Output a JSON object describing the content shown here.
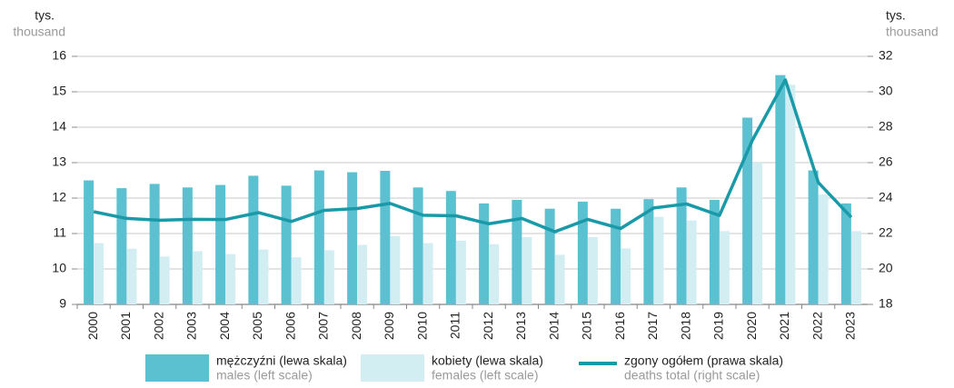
{
  "chart_data": {
    "type": "bar_line",
    "y_label": "tys.",
    "y_label_sub": "thousand",
    "y2_label": "tys.",
    "y2_label_sub": "thousand",
    "categories": [
      "2000",
      "2001",
      "2002",
      "2003",
      "2004",
      "2005",
      "2006",
      "2007",
      "2008",
      "2009",
      "2010",
      "2011",
      "2012",
      "2013",
      "2014",
      "2015",
      "2016",
      "2017",
      "2018",
      "2019",
      "2020",
      "2021",
      "2022",
      "2023"
    ],
    "series": [
      {
        "name": "mężczyźni (lewa skala)",
        "name_sub": "males (left scale)",
        "type": "bar",
        "color": "#5bc0d0",
        "values": [
          12.5,
          12.28,
          12.4,
          12.3,
          12.37,
          12.63,
          12.35,
          12.78,
          12.73,
          12.77,
          12.3,
          12.2,
          11.85,
          11.95,
          11.7,
          11.9,
          11.7,
          11.97,
          12.3,
          11.95,
          14.27,
          15.47,
          12.78,
          11.85
        ]
      },
      {
        "name": "kobiety (lewa skala)",
        "name_sub": "females (left scale)",
        "type": "bar",
        "color": "#d3eef3",
        "values": [
          10.73,
          10.57,
          10.35,
          10.5,
          10.42,
          10.55,
          10.33,
          10.53,
          10.68,
          10.93,
          10.73,
          10.8,
          10.7,
          10.9,
          10.4,
          10.9,
          10.58,
          11.47,
          11.37,
          11.07,
          13.0,
          15.2,
          12.1,
          11.07
        ]
      },
      {
        "name": "zgony ogółem (prawa skala)",
        "name_sub": "deaths total (right scale)",
        "type": "line",
        "axis": "y2",
        "color": "#1a9aa8",
        "values": [
          23.23,
          22.85,
          22.75,
          22.8,
          22.79,
          23.18,
          22.68,
          23.31,
          23.41,
          23.7,
          23.03,
          23.0,
          22.55,
          22.85,
          22.1,
          22.8,
          22.28,
          23.44,
          23.67,
          23.02,
          27.27,
          30.67,
          24.88,
          22.92
        ]
      }
    ],
    "ylim": [
      9,
      16
    ],
    "yticks": [
      9,
      10,
      11,
      12,
      13,
      14,
      15,
      16
    ],
    "y2lim": [
      18,
      32
    ],
    "y2ticks": [
      18,
      20,
      22,
      24,
      26,
      28,
      30,
      32
    ],
    "grid": true
  }
}
